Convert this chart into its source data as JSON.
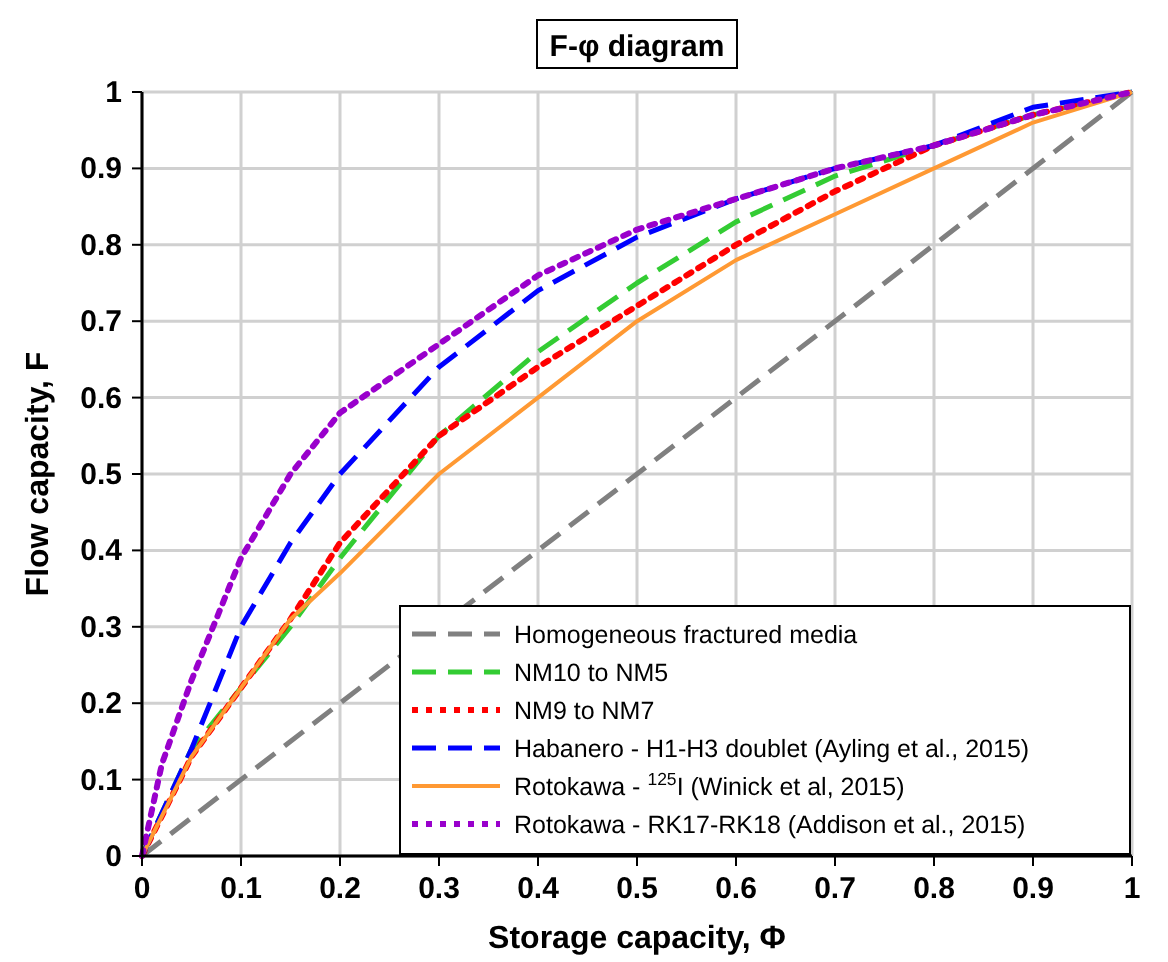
{
  "chart_data": {
    "type": "line",
    "title": "F-φ diagram",
    "xlabel": "Storage capacity, Φ",
    "ylabel": "Flow capacity, F",
    "xlim": [
      0,
      1
    ],
    "ylim": [
      0,
      1
    ],
    "xticks": [
      0,
      0.1,
      0.2,
      0.3,
      0.4,
      0.5,
      0.6,
      0.7,
      0.8,
      0.9,
      1
    ],
    "yticks": [
      0,
      0.1,
      0.2,
      0.3,
      0.4,
      0.5,
      0.6,
      0.7,
      0.8,
      0.9,
      1
    ],
    "grid": true,
    "legend": "bottom right",
    "series": [
      {
        "name": "Homogeneous fractured media",
        "color": "#808080",
        "line_style": "dashed",
        "x": [
          0,
          1
        ],
        "values": [
          0,
          1
        ]
      },
      {
        "name": "NM10 to NM5",
        "color": "#33cc33",
        "line_style": "dashed",
        "x": [
          0,
          0.05,
          0.1,
          0.15,
          0.2,
          0.3,
          0.4,
          0.5,
          0.6,
          0.7,
          0.8,
          0.9,
          1
        ],
        "values": [
          0,
          0.14,
          0.22,
          0.3,
          0.39,
          0.55,
          0.66,
          0.75,
          0.83,
          0.89,
          0.93,
          0.97,
          1
        ]
      },
      {
        "name": "NM9 to NM7",
        "color": "#ff0000",
        "line_style": "dotted",
        "x": [
          0,
          0.05,
          0.1,
          0.15,
          0.2,
          0.3,
          0.4,
          0.5,
          0.6,
          0.7,
          0.8,
          0.9,
          1
        ],
        "values": [
          0,
          0.13,
          0.22,
          0.31,
          0.41,
          0.55,
          0.64,
          0.72,
          0.8,
          0.87,
          0.93,
          0.97,
          1
        ]
      },
      {
        "name": "Habanero - H1-H3 doublet (Ayling et al., 2015)",
        "color": "#0000ff",
        "line_style": "dashed",
        "x": [
          0,
          0.05,
          0.1,
          0.15,
          0.2,
          0.3,
          0.4,
          0.5,
          0.6,
          0.7,
          0.8,
          0.9,
          1
        ],
        "values": [
          0,
          0.14,
          0.3,
          0.41,
          0.5,
          0.64,
          0.74,
          0.81,
          0.86,
          0.9,
          0.93,
          0.98,
          1
        ]
      },
      {
        "name": "Rotokawa - $^{125}$I (Winick et al, 2015)",
        "color": "#ff9933",
        "line_style": "solid",
        "x": [
          0,
          0.05,
          0.1,
          0.15,
          0.2,
          0.3,
          0.4,
          0.5,
          0.6,
          0.7,
          0.8,
          0.9,
          1
        ],
        "values": [
          0,
          0.13,
          0.22,
          0.31,
          0.37,
          0.5,
          0.6,
          0.7,
          0.78,
          0.84,
          0.9,
          0.96,
          1
        ]
      },
      {
        "name": "Rotokawa - RK17-RK18 (Addison et al., 2015)",
        "color": "#9900cc",
        "line_style": "dotted",
        "x": [
          0,
          0.02,
          0.05,
          0.1,
          0.15,
          0.2,
          0.3,
          0.4,
          0.5,
          0.6,
          0.7,
          0.8,
          0.9,
          1
        ],
        "values": [
          0,
          0.12,
          0.23,
          0.39,
          0.5,
          0.58,
          0.67,
          0.76,
          0.82,
          0.86,
          0.9,
          0.93,
          0.97,
          1
        ]
      }
    ]
  }
}
